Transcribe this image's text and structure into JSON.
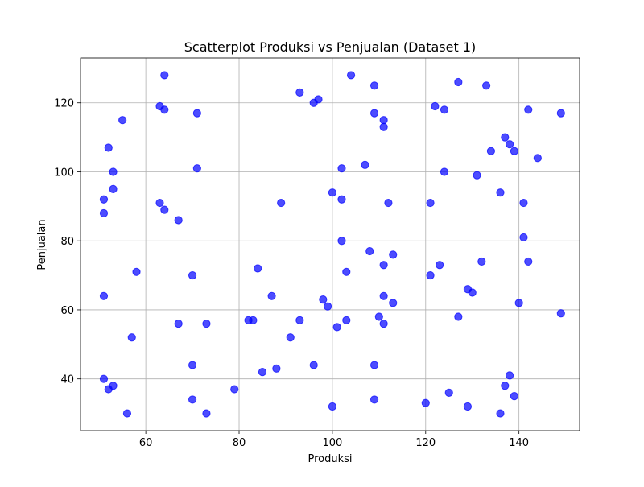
{
  "chart_data": {
    "type": "scatter",
    "title": "Scatterplot Produksi vs Penjualan (Dataset 1)",
    "xlabel": "Produksi",
    "ylabel": "Penjualan",
    "xlim": [
      46,
      153
    ],
    "ylim": [
      25,
      133
    ],
    "x_ticks": [
      60,
      80,
      100,
      120,
      140
    ],
    "y_ticks": [
      40,
      60,
      80,
      100,
      120
    ],
    "grid": true,
    "marker_color": "#0000ff",
    "marker_alpha": 0.7,
    "points": [
      [
        64,
        128
      ],
      [
        104,
        128
      ],
      [
        93,
        123
      ],
      [
        96,
        120
      ],
      [
        97,
        121
      ],
      [
        109,
        125
      ],
      [
        127,
        126
      ],
      [
        133,
        125
      ],
      [
        63,
        119
      ],
      [
        64,
        118
      ],
      [
        71,
        117
      ],
      [
        109,
        117
      ],
      [
        111,
        115
      ],
      [
        111,
        113
      ],
      [
        122,
        119
      ],
      [
        124,
        118
      ],
      [
        142,
        118
      ],
      [
        149,
        117
      ],
      [
        55,
        115
      ],
      [
        52,
        107
      ],
      [
        53,
        100
      ],
      [
        71,
        101
      ],
      [
        102,
        101
      ],
      [
        107,
        102
      ],
      [
        124,
        100
      ],
      [
        131,
        99
      ],
      [
        134,
        106
      ],
      [
        137,
        110
      ],
      [
        138,
        108
      ],
      [
        139,
        106
      ],
      [
        144,
        104
      ],
      [
        53,
        95
      ],
      [
        51,
        92
      ],
      [
        51,
        88
      ],
      [
        63,
        91
      ],
      [
        64,
        89
      ],
      [
        67,
        86
      ],
      [
        89,
        91
      ],
      [
        100,
        94
      ],
      [
        102,
        92
      ],
      [
        112,
        91
      ],
      [
        121,
        91
      ],
      [
        136,
        94
      ],
      [
        141,
        91
      ],
      [
        141,
        81
      ],
      [
        102,
        80
      ],
      [
        108,
        77
      ],
      [
        113,
        76
      ],
      [
        111,
        73
      ],
      [
        123,
        73
      ],
      [
        132,
        74
      ],
      [
        142,
        74
      ],
      [
        58,
        71
      ],
      [
        70,
        70
      ],
      [
        84,
        72
      ],
      [
        103,
        71
      ],
      [
        121,
        70
      ],
      [
        51,
        64
      ],
      [
        87,
        64
      ],
      [
        98,
        63
      ],
      [
        99,
        61
      ],
      [
        111,
        64
      ],
      [
        113,
        62
      ],
      [
        129,
        66
      ],
      [
        130,
        65
      ],
      [
        140,
        62
      ],
      [
        149,
        59
      ],
      [
        67,
        56
      ],
      [
        73,
        56
      ],
      [
        82,
        57
      ],
      [
        83,
        57
      ],
      [
        93,
        57
      ],
      [
        103,
        57
      ],
      [
        101,
        55
      ],
      [
        110,
        58
      ],
      [
        111,
        56
      ],
      [
        127,
        58
      ],
      [
        57,
        52
      ],
      [
        91,
        52
      ],
      [
        70,
        44
      ],
      [
        85,
        42
      ],
      [
        88,
        43
      ],
      [
        96,
        44
      ],
      [
        109,
        44
      ],
      [
        51,
        40
      ],
      [
        52,
        37
      ],
      [
        53,
        38
      ],
      [
        79,
        37
      ],
      [
        70,
        34
      ],
      [
        100,
        32
      ],
      [
        109,
        34
      ],
      [
        120,
        33
      ],
      [
        125,
        36
      ],
      [
        129,
        32
      ],
      [
        137,
        38
      ],
      [
        138,
        41
      ],
      [
        139,
        35
      ],
      [
        56,
        30
      ],
      [
        73,
        30
      ],
      [
        136,
        30
      ]
    ]
  }
}
